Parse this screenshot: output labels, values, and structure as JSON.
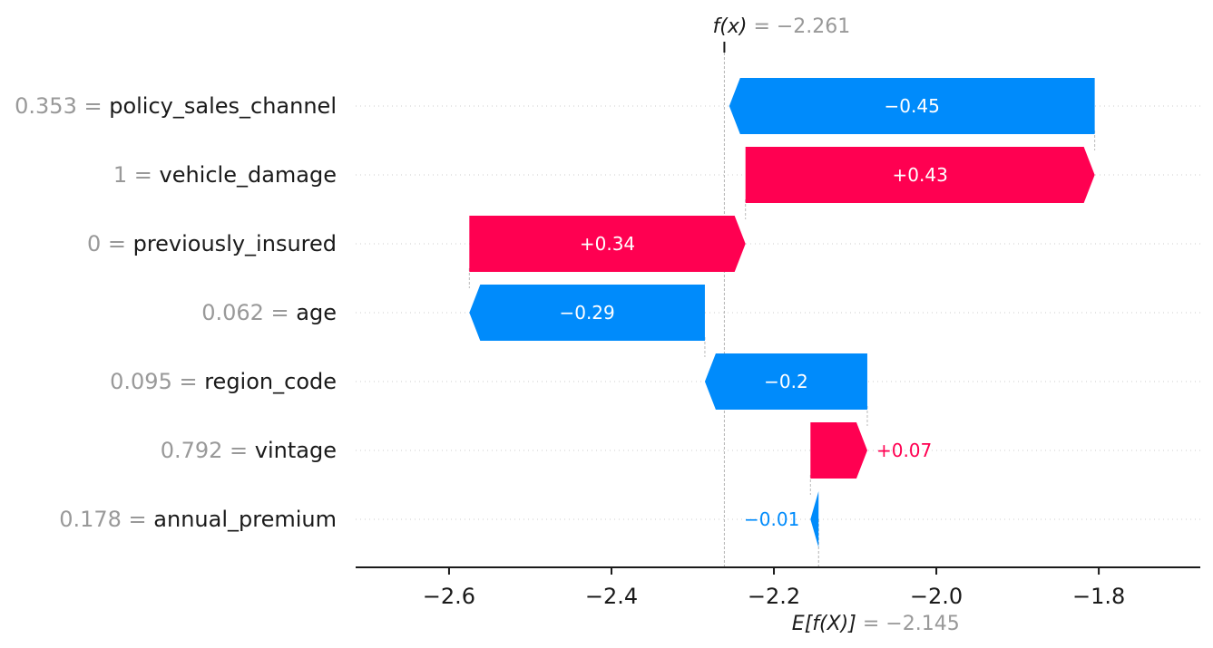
{
  "chart_data": {
    "type": "waterfall",
    "output_label": "f(x)",
    "output_value": -2.261,
    "output_text": "−2.261",
    "base_label": "E[f(X)]",
    "base_value": -2.145,
    "base_text": "−2.145",
    "features": [
      {
        "feature_value": "0.353",
        "feature": "policy_sales_channel",
        "contribution": -0.45,
        "label": "−0.45"
      },
      {
        "feature_value": "1",
        "feature": "vehicle_damage",
        "contribution": 0.43,
        "label": "+0.43"
      },
      {
        "feature_value": "0",
        "feature": "previously_insured",
        "contribution": 0.34,
        "label": "+0.34"
      },
      {
        "feature_value": "0.062",
        "feature": "age",
        "contribution": -0.29,
        "label": "−0.29"
      },
      {
        "feature_value": "0.095",
        "feature": "region_code",
        "contribution": -0.2,
        "label": "−0.2"
      },
      {
        "feature_value": "0.792",
        "feature": "vintage",
        "contribution": 0.07,
        "label": "+0.07"
      },
      {
        "feature_value": "0.178",
        "feature": "annual_premium",
        "contribution": -0.01,
        "label": "−0.01"
      }
    ],
    "xlim": [
      -2.715,
      -1.675
    ],
    "xticks": [
      -2.6,
      -2.4,
      -2.2,
      -2.0,
      -1.8
    ],
    "xtick_labels": [
      "−2.6",
      "−2.4",
      "−2.2",
      "−2.0",
      "−1.8"
    ],
    "colors": {
      "positive": "#ff0051",
      "negative": "#008bfb",
      "value_text": "#999999",
      "label_text": "#1a1a1a"
    }
  }
}
